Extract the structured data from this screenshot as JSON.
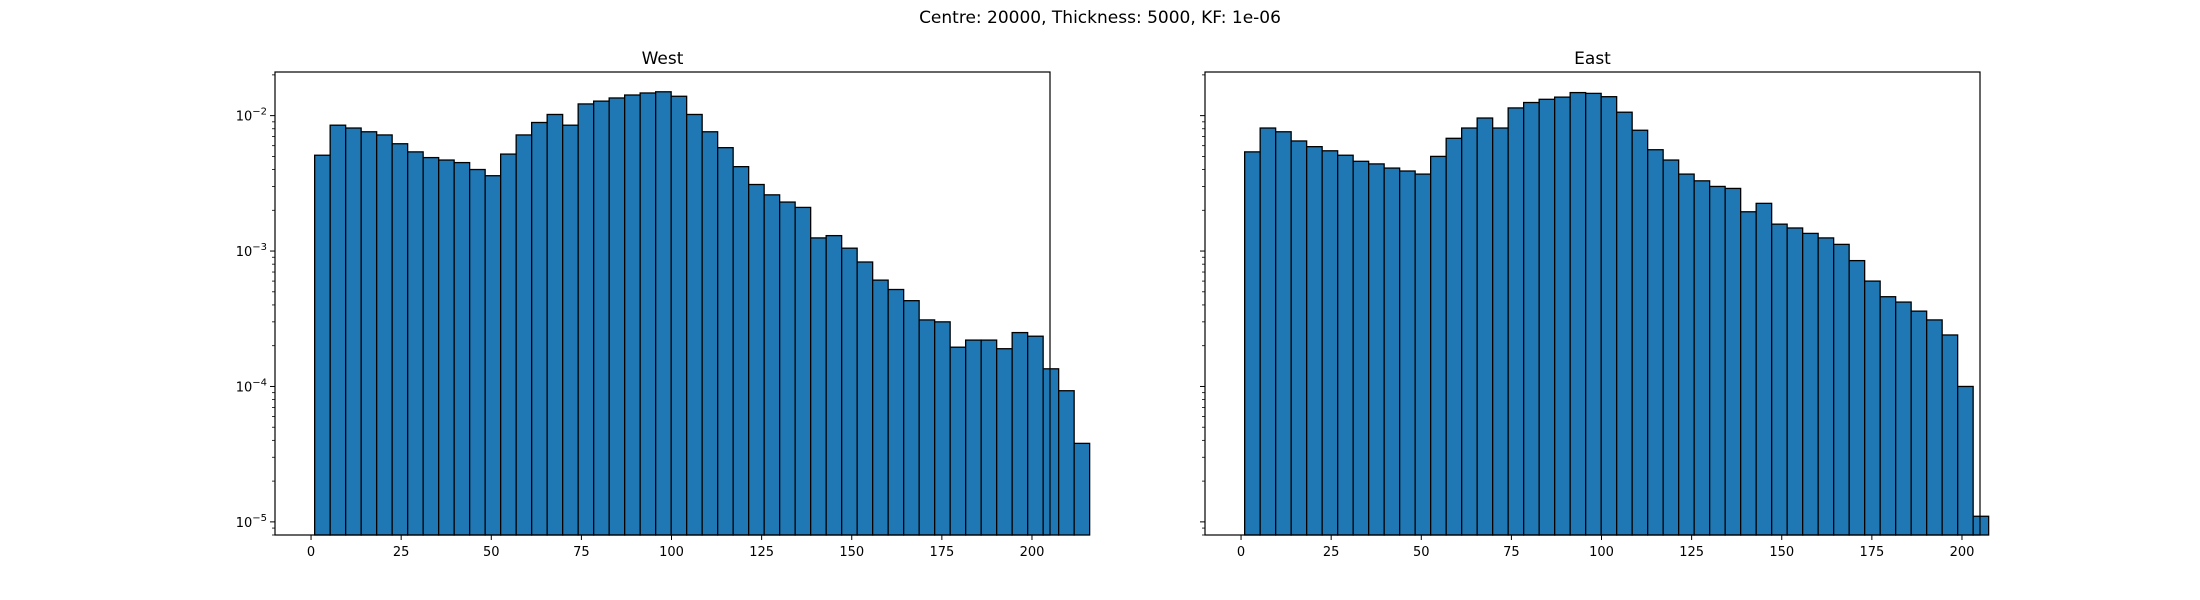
{
  "figure": {
    "suptitle": "Centre: 20000, Thickness: 5000, KF: 1e-06"
  },
  "chart_data": [
    {
      "type": "bar",
      "title": "West",
      "xlabel": "",
      "ylabel": "",
      "yscale": "log",
      "xlim": [
        -10,
        205
      ],
      "ylim": [
        8e-06,
        0.021
      ],
      "xticks": [
        0,
        25,
        50,
        75,
        100,
        125,
        150,
        175,
        200
      ],
      "xtick_labels": [
        "0",
        "25",
        "50",
        "75",
        "100",
        "125",
        "150",
        "175",
        "200"
      ],
      "yticks": [
        1e-05,
        0.0001,
        0.001,
        0.01
      ],
      "bin_start": 1,
      "bin_width": 4.3,
      "bar_color": "#1f77b4",
      "edge_color": "#000000",
      "grid": false,
      "values": [
        0.0051,
        0.0085,
        0.0081,
        0.0076,
        0.0072,
        0.0062,
        0.0054,
        0.0049,
        0.0047,
        0.0045,
        0.004,
        0.0036,
        0.0052,
        0.0072,
        0.0089,
        0.0102,
        0.0085,
        0.0122,
        0.0128,
        0.0135,
        0.0142,
        0.0147,
        0.015,
        0.0139,
        0.0102,
        0.0076,
        0.0058,
        0.0042,
        0.0031,
        0.0026,
        0.0023,
        0.0021,
        0.00125,
        0.0013,
        0.00105,
        0.00083,
        0.00061,
        0.00052,
        0.00043,
        0.00031,
        0.0003,
        0.000195,
        0.00022,
        0.00022,
        0.00019,
        0.00025,
        0.000235,
        0.000135,
        9.3e-05,
        3.8e-05
      ]
    },
    {
      "type": "bar",
      "title": "East",
      "xlabel": "",
      "ylabel": "",
      "yscale": "log",
      "xlim": [
        -10,
        205
      ],
      "ylim": [
        8e-06,
        0.021
      ],
      "xticks": [
        0,
        25,
        50,
        75,
        100,
        125,
        150,
        175,
        200
      ],
      "xtick_labels": [
        "0",
        "25",
        "50",
        "75",
        "100",
        "125",
        "150",
        "175",
        "200"
      ],
      "yticks": [
        1e-05,
        0.0001,
        0.001,
        0.01
      ],
      "bin_start": 1,
      "bin_width": 4.3,
      "bar_color": "#1f77b4",
      "edge_color": "#000000",
      "grid": false,
      "values": [
        0.0054,
        0.0081,
        0.0076,
        0.0065,
        0.0059,
        0.0055,
        0.0051,
        0.0046,
        0.0044,
        0.0041,
        0.0039,
        0.0037,
        0.005,
        0.0068,
        0.0081,
        0.0096,
        0.0081,
        0.0114,
        0.0125,
        0.0132,
        0.0137,
        0.0148,
        0.0146,
        0.0138,
        0.0106,
        0.0078,
        0.0056,
        0.0047,
        0.0037,
        0.0033,
        0.003,
        0.0029,
        0.00195,
        0.00225,
        0.00158,
        0.00148,
        0.00135,
        0.00125,
        0.00112,
        0.00085,
        0.0006,
        0.00046,
        0.00042,
        0.00036,
        0.00031,
        0.00024,
        0.0001,
        1.1e-05
      ]
    }
  ]
}
